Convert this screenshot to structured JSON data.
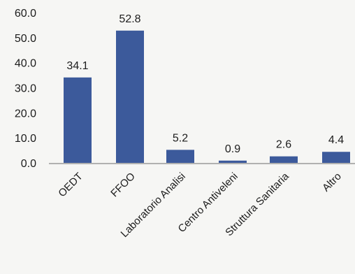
{
  "chart_data": {
    "type": "bar",
    "categories": [
      "OEDT",
      "FFOO",
      "Laboratorio Analisi",
      "Centro Antiveleni",
      "Struttura Sanitaria",
      "Altro"
    ],
    "values": [
      34.1,
      52.8,
      5.2,
      0.9,
      2.6,
      4.4
    ],
    "value_labels": [
      "34.1",
      "52.8",
      "5.2",
      "0.9",
      "2.6",
      "4.4"
    ],
    "y_ticks": [
      "0.0",
      "10.0",
      "20.0",
      "30.0",
      "40.0",
      "50.0",
      "60.0"
    ],
    "ylim": [
      0,
      60
    ],
    "grid": false,
    "legend": "none",
    "colors": {
      "bar": "#3c5a9b",
      "bar_top": "#4a6aad",
      "axis": "#9a9a9a",
      "text": "#1c1c1c",
      "background": "#f6f6f4"
    }
  }
}
